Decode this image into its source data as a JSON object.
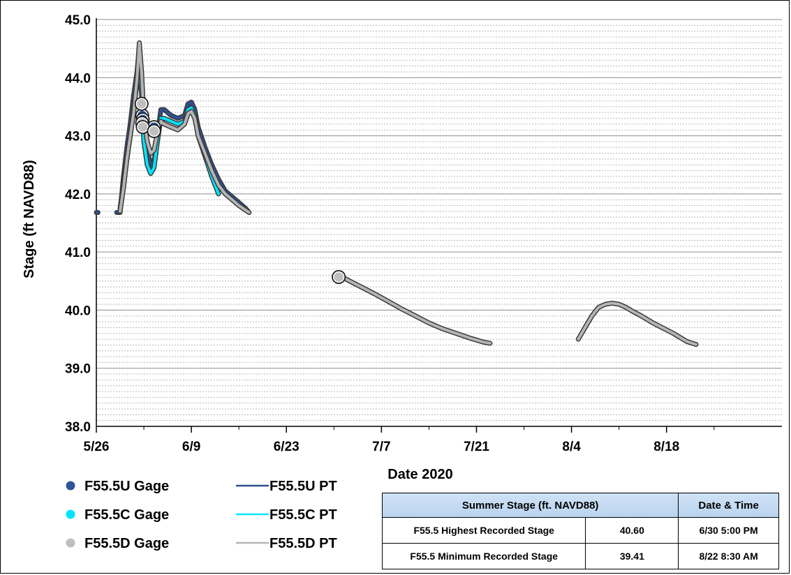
{
  "chart_data": {
    "type": "line",
    "title": "",
    "xlabel": "Date 2020",
    "ylabel": "Stage (ft NAVD88)",
    "ylim": [
      38.0,
      45.0
    ],
    "yticks": [
      "38.0",
      "39.0",
      "40.0",
      "41.0",
      "42.0",
      "43.0",
      "44.0",
      "45.0"
    ],
    "xlim": [
      "2020-05-26",
      "2020-09-04"
    ],
    "xticks": [
      {
        "date": "2020-05-26",
        "label": "5/26"
      },
      {
        "date": "2020-06-09",
        "label": "6/9"
      },
      {
        "date": "2020-06-23",
        "label": "6/23"
      },
      {
        "date": "2020-07-07",
        "label": "7/7"
      },
      {
        "date": "2020-07-21",
        "label": "7/21"
      },
      {
        "date": "2020-08-04",
        "label": "8/4"
      },
      {
        "date": "2020-08-18",
        "label": "8/18"
      }
    ],
    "grid": "horizontal major and minor",
    "series": [
      {
        "name": "F55.5U PT",
        "kind": "line",
        "color": "#2f4f8f",
        "segments": [
          [
            [
              "2020-05-26 00:00",
              41.68
            ],
            [
              "2020-05-26 06:00",
              41.68
            ]
          ],
          [
            [
              "2020-05-29 00:00",
              41.68
            ],
            [
              "2020-05-29 12:00",
              41.68
            ],
            [
              "2020-05-30 00:00",
              42.3
            ],
            [
              "2020-05-30 12:00",
              42.8
            ],
            [
              "2020-05-31 00:00",
              43.2
            ],
            [
              "2020-05-31 12:00",
              43.7
            ],
            [
              "2020-06-01 00:00",
              44.1
            ],
            [
              "2020-06-01 08:00",
              44.55
            ],
            [
              "2020-06-01 16:00",
              44.0
            ],
            [
              "2020-06-02 00:00",
              43.2
            ],
            [
              "2020-06-02 12:00",
              42.75
            ],
            [
              "2020-06-03 00:00",
              42.5
            ],
            [
              "2020-06-03 12:00",
              42.55
            ],
            [
              "2020-06-04 00:00",
              43.0
            ],
            [
              "2020-06-04 12:00",
              43.45
            ],
            [
              "2020-06-05 00:00",
              43.45
            ],
            [
              "2020-06-06 00:00",
              43.35
            ],
            [
              "2020-06-07 00:00",
              43.3
            ],
            [
              "2020-06-08 00:00",
              43.35
            ],
            [
              "2020-06-08 12:00",
              43.55
            ],
            [
              "2020-06-09 00:00",
              43.58
            ],
            [
              "2020-06-09 12:00",
              43.45
            ],
            [
              "2020-06-10 00:00",
              43.15
            ],
            [
              "2020-06-11 00:00",
              42.8
            ],
            [
              "2020-06-12 00:00",
              42.5
            ],
            [
              "2020-06-13 00:00",
              42.25
            ],
            [
              "2020-06-14 00:00",
              42.05
            ],
            [
              "2020-06-15 00:00",
              41.95
            ],
            [
              "2020-06-16 00:00",
              41.85
            ],
            [
              "2020-06-17 00:00",
              41.75
            ],
            [
              "2020-06-17 12:00",
              41.68
            ]
          ]
        ]
      },
      {
        "name": "F55.5C PT",
        "kind": "line",
        "color": "#00e5ff",
        "segments": [
          [
            [
              "2020-05-29 12:00",
              41.75
            ],
            [
              "2020-05-30 00:00",
              42.2
            ],
            [
              "2020-05-30 12:00",
              42.6
            ],
            [
              "2020-05-31 00:00",
              43.0
            ],
            [
              "2020-05-31 12:00",
              43.5
            ],
            [
              "2020-06-01 00:00",
              43.9
            ],
            [
              "2020-06-01 08:00",
              44.3
            ],
            [
              "2020-06-01 16:00",
              43.7
            ],
            [
              "2020-06-02 00:00",
              42.9
            ],
            [
              "2020-06-02 12:00",
              42.5
            ],
            [
              "2020-06-03 00:00",
              42.35
            ],
            [
              "2020-06-03 12:00",
              42.45
            ],
            [
              "2020-06-04 00:00",
              42.9
            ],
            [
              "2020-06-04 12:00",
              43.3
            ],
            [
              "2020-06-05 00:00",
              43.3
            ],
            [
              "2020-06-06 00:00",
              43.25
            ],
            [
              "2020-06-07 00:00",
              43.2
            ],
            [
              "2020-06-08 00:00",
              43.25
            ],
            [
              "2020-06-08 12:00",
              43.45
            ],
            [
              "2020-06-09 00:00",
              43.48
            ],
            [
              "2020-06-09 12:00",
              43.35
            ],
            [
              "2020-06-10 00:00",
              43.0
            ],
            [
              "2020-06-11 00:00",
              42.65
            ],
            [
              "2020-06-12 00:00",
              42.3
            ],
            [
              "2020-06-13 00:00",
              42.0
            ]
          ]
        ]
      },
      {
        "name": "F55.5D PT",
        "kind": "line",
        "color": "#b5b5b5",
        "segments": [
          [
            [
              "2020-05-29 12:00",
              41.7
            ],
            [
              "2020-05-30 00:00",
              42.1
            ],
            [
              "2020-05-30 12:00",
              42.6
            ],
            [
              "2020-05-31 00:00",
              43.0
            ],
            [
              "2020-05-31 12:00",
              43.4
            ],
            [
              "2020-06-01 00:00",
              44.0
            ],
            [
              "2020-06-01 08:00",
              44.6
            ],
            [
              "2020-06-01 16:00",
              44.1
            ],
            [
              "2020-06-02 00:00",
              43.3
            ],
            [
              "2020-06-02 12:00",
              42.9
            ],
            [
              "2020-06-03 00:00",
              42.7
            ],
            [
              "2020-06-03 12:00",
              42.75
            ],
            [
              "2020-06-04 00:00",
              43.05
            ],
            [
              "2020-06-04 12:00",
              43.25
            ],
            [
              "2020-06-05 00:00",
              43.2
            ],
            [
              "2020-06-06 00:00",
              43.15
            ],
            [
              "2020-06-07 00:00",
              43.1
            ],
            [
              "2020-06-08 00:00",
              43.2
            ],
            [
              "2020-06-08 12:00",
              43.38
            ],
            [
              "2020-06-09 00:00",
              43.42
            ],
            [
              "2020-06-09 12:00",
              43.3
            ],
            [
              "2020-06-10 00:00",
              43.0
            ],
            [
              "2020-06-11 00:00",
              42.7
            ],
            [
              "2020-06-12 00:00",
              42.4
            ],
            [
              "2020-06-13 00:00",
              42.15
            ],
            [
              "2020-06-14 00:00",
              42.0
            ],
            [
              "2020-06-15 00:00",
              41.9
            ],
            [
              "2020-06-16 00:00",
              41.8
            ],
            [
              "2020-06-17 00:00",
              41.72
            ],
            [
              "2020-06-17 12:00",
              41.68
            ]
          ],
          [
            [
              "2020-06-30 17:00",
              40.6
            ],
            [
              "2020-07-02 00:00",
              40.52
            ],
            [
              "2020-07-04 00:00",
              40.4
            ],
            [
              "2020-07-06 00:00",
              40.28
            ],
            [
              "2020-07-08 00:00",
              40.15
            ],
            [
              "2020-07-10 00:00",
              40.02
            ],
            [
              "2020-07-12 00:00",
              39.9
            ],
            [
              "2020-07-14 00:00",
              39.78
            ],
            [
              "2020-07-16 00:00",
              39.68
            ],
            [
              "2020-07-18 00:00",
              39.6
            ],
            [
              "2020-07-20 00:00",
              39.52
            ],
            [
              "2020-07-22 00:00",
              39.45
            ],
            [
              "2020-07-23 00:00",
              39.43
            ]
          ],
          [
            [
              "2020-08-05 00:00",
              39.5
            ],
            [
              "2020-08-06 00:00",
              39.7
            ],
            [
              "2020-08-07 00:00",
              39.9
            ],
            [
              "2020-08-08 00:00",
              40.05
            ],
            [
              "2020-08-09 00:00",
              40.1
            ],
            [
              "2020-08-10 00:00",
              40.12
            ],
            [
              "2020-08-11 00:00",
              40.1
            ],
            [
              "2020-08-12 00:00",
              40.05
            ],
            [
              "2020-08-13 00:00",
              39.98
            ],
            [
              "2020-08-14 00:00",
              39.92
            ],
            [
              "2020-08-15 00:00",
              39.85
            ],
            [
              "2020-08-16 00:00",
              39.78
            ],
            [
              "2020-08-17 00:00",
              39.72
            ],
            [
              "2020-08-18 00:00",
              39.66
            ],
            [
              "2020-08-19 00:00",
              39.6
            ],
            [
              "2020-08-20 00:00",
              39.53
            ],
            [
              "2020-08-21 00:00",
              39.46
            ],
            [
              "2020-08-22 08:30",
              39.41
            ]
          ]
        ]
      },
      {
        "name": "F55.5U Gage",
        "kind": "points",
        "color": "#2f5597",
        "points": [
          [
            "2020-06-01 18:00",
            43.35
          ],
          [
            "2020-06-01 20:00",
            43.28
          ],
          [
            "2020-06-03 12:00",
            43.15
          ]
        ]
      },
      {
        "name": "F55.5C Gage",
        "kind": "points",
        "color": "#00e5ff",
        "points": []
      },
      {
        "name": "F55.5D Gage",
        "kind": "points",
        "color": "#bfbfbf",
        "points": [
          [
            "2020-06-01 16:00",
            43.55
          ],
          [
            "2020-06-01 18:00",
            43.22
          ],
          [
            "2020-06-01 20:00",
            43.15
          ],
          [
            "2020-06-03 12:00",
            43.08
          ],
          [
            "2020-06-30 17:00",
            40.57
          ]
        ]
      }
    ]
  },
  "legend": {
    "items": [
      {
        "label": "F55.5U Gage",
        "kind": "marker",
        "color": "#2f5597"
      },
      {
        "label": "F55.5U PT",
        "kind": "line",
        "color": "#2f4f8f"
      },
      {
        "label": "F55.5C Gage",
        "kind": "marker",
        "color": "#00e5ff"
      },
      {
        "label": "F55.5C PT",
        "kind": "line",
        "color": "#00e5ff"
      },
      {
        "label": "F55.5D Gage",
        "kind": "marker",
        "color": "#bfbfbf"
      },
      {
        "label": "F55.5D PT",
        "kind": "line",
        "color": "#b5b5b5"
      }
    ]
  },
  "summary_table": {
    "header_stage": "Summer Stage (ft. NAVD88)",
    "header_datetime": "Date & Time",
    "rows": [
      {
        "label": "F55.5 Highest Recorded Stage",
        "value": "40.60",
        "datetime": "6/30 5:00 PM"
      },
      {
        "label": "F55.5 Minimum Recorded Stage",
        "value": "39.41",
        "datetime": "8/22 8:30 AM"
      }
    ]
  }
}
